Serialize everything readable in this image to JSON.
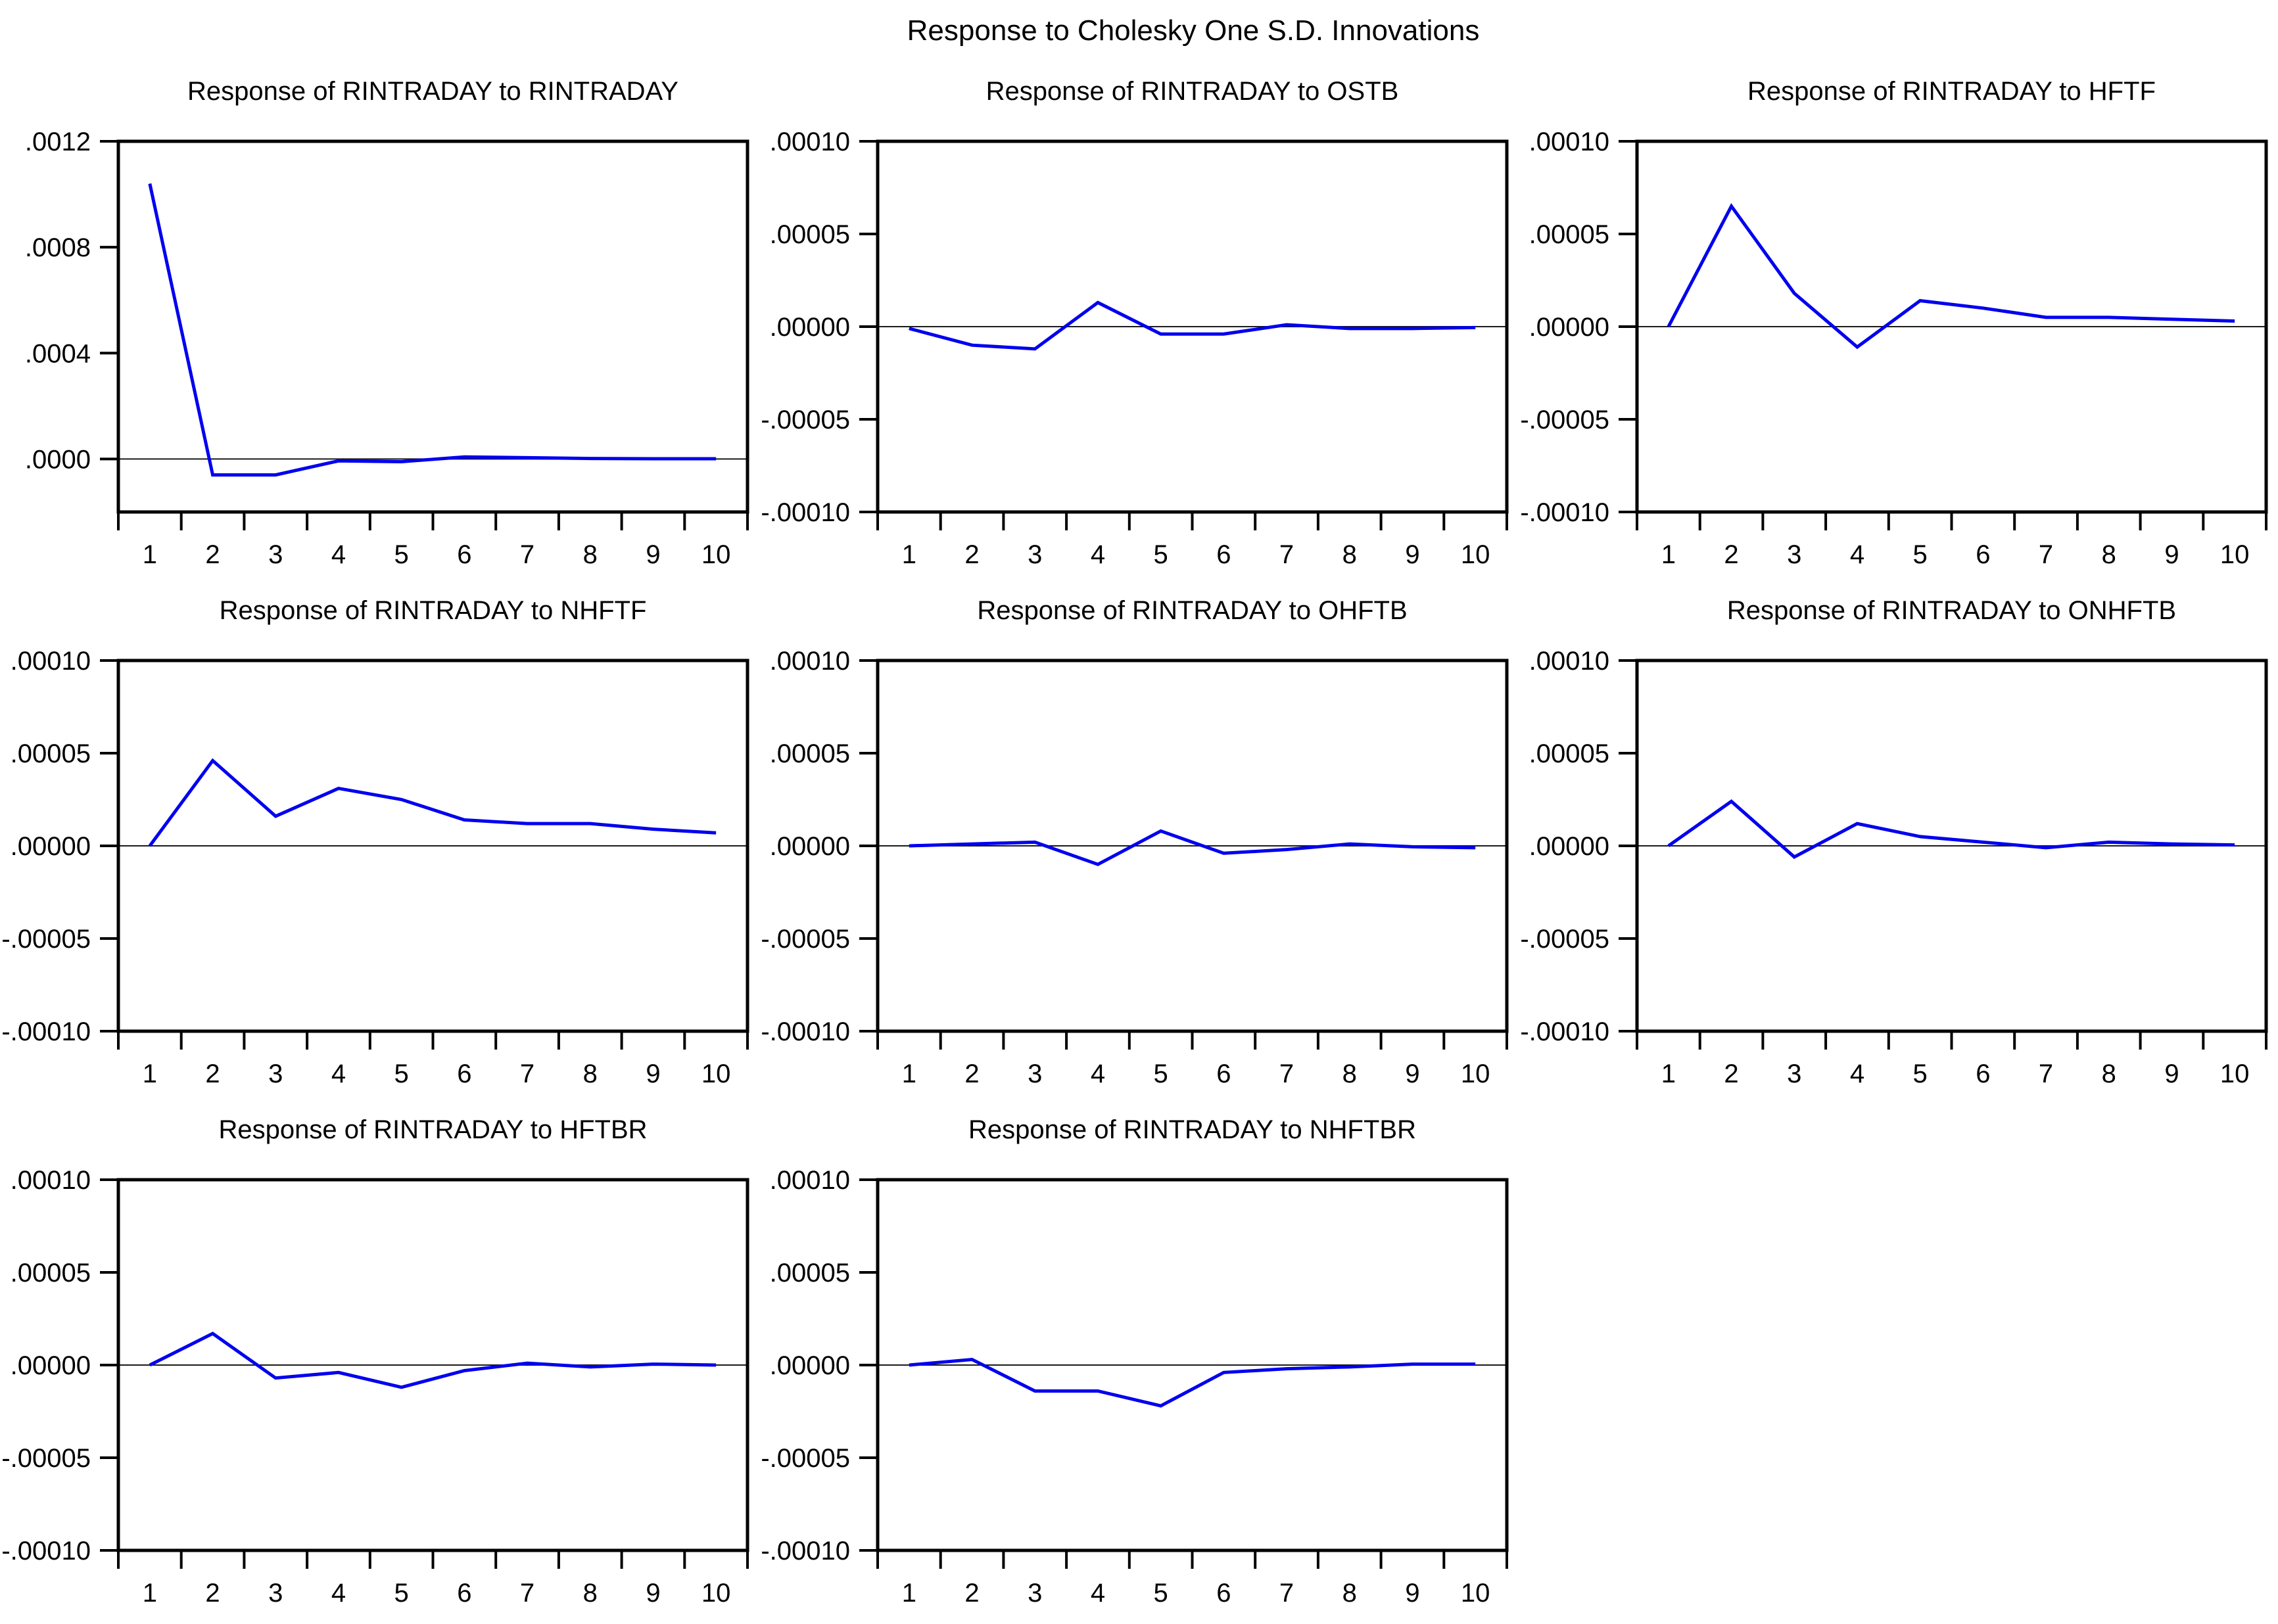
{
  "main_title": "Response to Cholesky One S.D. Innovations",
  "line_color": "#0000ee",
  "axis_color": "#000000",
  "zero_line_color": "#1a1a1a",
  "background_color": "#ffffff",
  "chart_data": [
    {
      "type": "line",
      "title": "Response of RINTRADAY to RINTRADAY",
      "x": [
        1,
        2,
        3,
        4,
        5,
        6,
        7,
        8,
        9,
        10
      ],
      "values": [
        0.00104,
        -6e-05,
        -6e-05,
        -7e-06,
        -1e-05,
        8e-06,
        5e-06,
        2e-06,
        1e-06,
        1e-06
      ],
      "ylim": [
        -0.0002,
        0.0012
      ],
      "ytick_values": [
        0.0012,
        0.0008,
        0.0004,
        0.0
      ],
      "ytick_labels": [
        ".0012",
        ".0008",
        ".0004",
        ".0000"
      ],
      "xlabel": "",
      "ylabel": "",
      "zero_line": true,
      "grid": "off",
      "legend": "none"
    },
    {
      "type": "line",
      "title": "Response of RINTRADAY to OSTB",
      "x": [
        1,
        2,
        3,
        4,
        5,
        6,
        7,
        8,
        9,
        10
      ],
      "values": [
        -1e-06,
        -1e-05,
        -1.2e-05,
        1.3e-05,
        -4e-06,
        -4e-06,
        1e-06,
        -1e-06,
        -1e-06,
        -5e-07
      ],
      "ylim": [
        -0.0001,
        0.0001
      ],
      "ytick_values": [
        0.0001,
        5e-05,
        0.0,
        -5e-05,
        -0.0001
      ],
      "ytick_labels": [
        ".00010",
        ".00005",
        ".00000",
        "-.00005",
        "-.00010"
      ],
      "xlabel": "",
      "ylabel": "",
      "zero_line": true,
      "grid": "off",
      "legend": "none"
    },
    {
      "type": "line",
      "title": "Response of RINTRADAY to HFTF",
      "x": [
        1,
        2,
        3,
        4,
        5,
        6,
        7,
        8,
        9,
        10
      ],
      "values": [
        0.0,
        6.5e-05,
        1.8e-05,
        -1.1e-05,
        1.4e-05,
        1e-05,
        5e-06,
        5e-06,
        4e-06,
        3e-06
      ],
      "ylim": [
        -0.0001,
        0.0001
      ],
      "ytick_values": [
        0.0001,
        5e-05,
        0.0,
        -5e-05,
        -0.0001
      ],
      "ytick_labels": [
        ".00010",
        ".00005",
        ".00000",
        "-.00005",
        "-.00010"
      ],
      "xlabel": "",
      "ylabel": "",
      "zero_line": true,
      "grid": "off",
      "legend": "none"
    },
    {
      "type": "line",
      "title": "Response of RINTRADAY to NHFTF",
      "x": [
        1,
        2,
        3,
        4,
        5,
        6,
        7,
        8,
        9,
        10
      ],
      "values": [
        0.0,
        4.6e-05,
        1.6e-05,
        3.1e-05,
        2.5e-05,
        1.4e-05,
        1.2e-05,
        1.2e-05,
        9e-06,
        7e-06
      ],
      "ylim": [
        -0.0001,
        0.0001
      ],
      "ytick_values": [
        0.0001,
        5e-05,
        0.0,
        -5e-05,
        -0.0001
      ],
      "ytick_labels": [
        ".00010",
        ".00005",
        ".00000",
        "-.00005",
        "-.00010"
      ],
      "xlabel": "",
      "ylabel": "",
      "zero_line": true,
      "grid": "off",
      "legend": "none"
    },
    {
      "type": "line",
      "title": "Response of RINTRADAY to OHFTB",
      "x": [
        1,
        2,
        3,
        4,
        5,
        6,
        7,
        8,
        9,
        10
      ],
      "values": [
        0.0,
        1e-06,
        2e-06,
        -1e-05,
        8e-06,
        -4e-06,
        -2e-06,
        1e-06,
        -5e-07,
        -1e-06
      ],
      "ylim": [
        -0.0001,
        0.0001
      ],
      "ytick_values": [
        0.0001,
        5e-05,
        0.0,
        -5e-05,
        -0.0001
      ],
      "ytick_labels": [
        ".00010",
        ".00005",
        ".00000",
        "-.00005",
        "-.00010"
      ],
      "xlabel": "",
      "ylabel": "",
      "zero_line": true,
      "grid": "off",
      "legend": "none"
    },
    {
      "type": "line",
      "title": "Response of RINTRADAY to ONHFTB",
      "x": [
        1,
        2,
        3,
        4,
        5,
        6,
        7,
        8,
        9,
        10
      ],
      "values": [
        0.0,
        2.4e-05,
        -6e-06,
        1.2e-05,
        5e-06,
        2e-06,
        -1e-06,
        2e-06,
        1e-06,
        5e-07
      ],
      "ylim": [
        -0.0001,
        0.0001
      ],
      "ytick_values": [
        0.0001,
        5e-05,
        0.0,
        -5e-05,
        -0.0001
      ],
      "ytick_labels": [
        ".00010",
        ".00005",
        ".00000",
        "-.00005",
        "-.00010"
      ],
      "xlabel": "",
      "ylabel": "",
      "zero_line": true,
      "grid": "off",
      "legend": "none"
    },
    {
      "type": "line",
      "title": "Response of RINTRADAY to HFTBR",
      "x": [
        1,
        2,
        3,
        4,
        5,
        6,
        7,
        8,
        9,
        10
      ],
      "values": [
        0.0,
        1.7e-05,
        -7e-06,
        -4e-06,
        -1.2e-05,
        -3e-06,
        1e-06,
        -1e-06,
        5e-07,
        0.0
      ],
      "ylim": [
        -0.0001,
        0.0001
      ],
      "ytick_values": [
        0.0001,
        5e-05,
        0.0,
        -5e-05,
        -0.0001
      ],
      "ytick_labels": [
        ".00010",
        ".00005",
        ".00000",
        "-.00005",
        "-.00010"
      ],
      "xlabel": "",
      "ylabel": "",
      "zero_line": true,
      "grid": "off",
      "legend": "none"
    },
    {
      "type": "line",
      "title": "Response of RINTRADAY to NHFTBR",
      "x": [
        1,
        2,
        3,
        4,
        5,
        6,
        7,
        8,
        9,
        10
      ],
      "values": [
        0.0,
        3e-06,
        -1.4e-05,
        -1.4e-05,
        -2.2e-05,
        -4e-06,
        -2e-06,
        -1e-06,
        5e-07,
        5e-07
      ],
      "ylim": [
        -0.0001,
        0.0001
      ],
      "ytick_values": [
        0.0001,
        5e-05,
        0.0,
        -5e-05,
        -0.0001
      ],
      "ytick_labels": [
        ".00010",
        ".00005",
        ".00000",
        "-.00005",
        "-.00010"
      ],
      "xlabel": "",
      "ylabel": "",
      "zero_line": true,
      "grid": "off",
      "legend": "none"
    }
  ]
}
